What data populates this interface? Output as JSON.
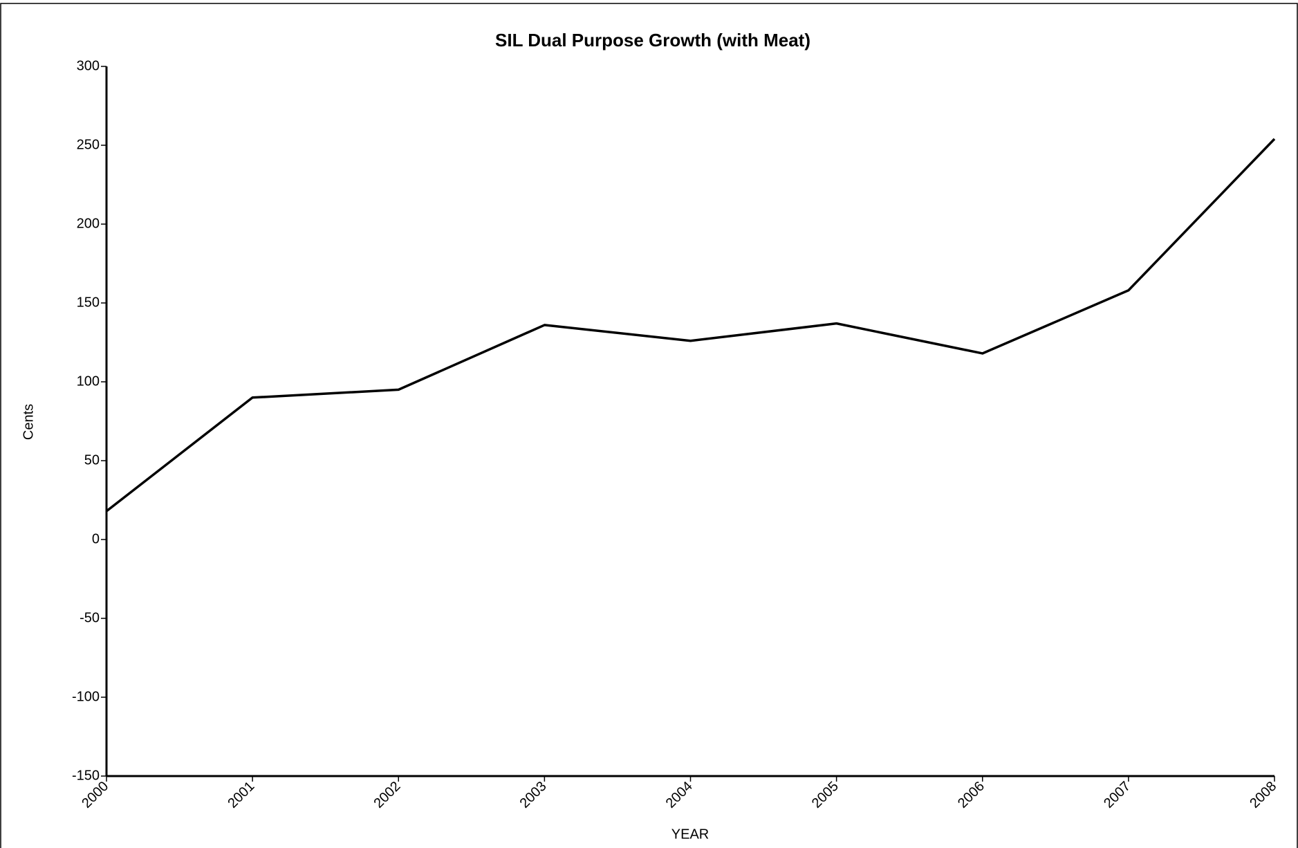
{
  "chart_data": {
    "type": "line",
    "title": "SIL Dual Purpose Growth (with Meat)",
    "x_label": "YEAR",
    "y_label": "Cents",
    "x": [
      2000,
      2001,
      2002,
      2003,
      2004,
      2005,
      2006,
      2007,
      2008
    ],
    "values": [
      18,
      90,
      95,
      136,
      126,
      137,
      118,
      158,
      254
    ],
    "color": "#000000",
    "xlim": [
      2000,
      2008
    ],
    "xticks": [
      2000,
      2001,
      2002,
      2003,
      2004,
      2005,
      2006,
      2007,
      2008
    ],
    "ylim": [
      -150,
      300
    ],
    "yticks": [
      -150,
      -100,
      -50,
      0,
      50,
      100,
      150,
      200,
      250,
      300
    ],
    "grid": false
  }
}
